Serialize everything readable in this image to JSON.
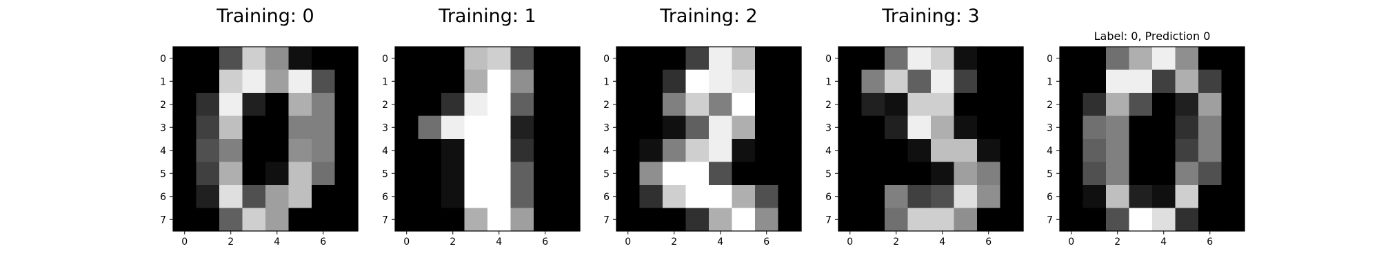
{
  "chart_data": [
    {
      "type": "heatmap",
      "title": "Training: 0",
      "colormap": "gray",
      "vmin": 0,
      "vmax": 16,
      "xticks": [
        0,
        2,
        4,
        6
      ],
      "yticks": [
        0,
        1,
        2,
        3,
        4,
        5,
        6,
        7
      ],
      "values": [
        [
          0,
          0,
          5,
          13,
          9,
          1,
          0,
          0
        ],
        [
          0,
          0,
          13,
          15,
          10,
          15,
          5,
          0
        ],
        [
          0,
          3,
          15,
          2,
          0,
          11,
          8,
          0
        ],
        [
          0,
          4,
          12,
          0,
          0,
          8,
          8,
          0
        ],
        [
          0,
          5,
          8,
          0,
          0,
          9,
          8,
          0
        ],
        [
          0,
          4,
          11,
          0,
          1,
          12,
          7,
          0
        ],
        [
          0,
          2,
          14,
          5,
          10,
          12,
          0,
          0
        ],
        [
          0,
          0,
          6,
          13,
          10,
          0,
          0,
          0
        ]
      ]
    },
    {
      "type": "heatmap",
      "title": "Training: 1",
      "colormap": "gray",
      "vmin": 0,
      "vmax": 16,
      "xticks": [
        0,
        2,
        4,
        6
      ],
      "yticks": [
        0,
        1,
        2,
        3,
        4,
        5,
        6,
        7
      ],
      "values": [
        [
          0,
          0,
          0,
          12,
          13,
          5,
          0,
          0
        ],
        [
          0,
          0,
          0,
          11,
          16,
          9,
          0,
          0
        ],
        [
          0,
          0,
          3,
          15,
          16,
          6,
          0,
          0
        ],
        [
          0,
          7,
          15,
          16,
          16,
          2,
          0,
          0
        ],
        [
          0,
          0,
          1,
          16,
          16,
          3,
          0,
          0
        ],
        [
          0,
          0,
          1,
          16,
          16,
          6,
          0,
          0
        ],
        [
          0,
          0,
          1,
          16,
          16,
          6,
          0,
          0
        ],
        [
          0,
          0,
          0,
          11,
          16,
          10,
          0,
          0
        ]
      ]
    },
    {
      "type": "heatmap",
      "title": "Training: 2",
      "colormap": "gray",
      "vmin": 0,
      "vmax": 16,
      "xticks": [
        0,
        2,
        4,
        6
      ],
      "yticks": [
        0,
        1,
        2,
        3,
        4,
        5,
        6,
        7
      ],
      "values": [
        [
          0,
          0,
          0,
          4,
          15,
          12,
          0,
          0
        ],
        [
          0,
          0,
          3,
          16,
          15,
          14,
          0,
          0
        ],
        [
          0,
          0,
          8,
          13,
          8,
          16,
          0,
          0
        ],
        [
          0,
          0,
          1,
          6,
          15,
          11,
          0,
          0
        ],
        [
          0,
          1,
          8,
          13,
          15,
          1,
          0,
          0
        ],
        [
          0,
          9,
          16,
          16,
          5,
          0,
          0,
          0
        ],
        [
          0,
          3,
          13,
          16,
          16,
          11,
          5,
          0
        ],
        [
          0,
          0,
          0,
          3,
          11,
          16,
          9,
          0
        ]
      ]
    },
    {
      "type": "heatmap",
      "title": "Training: 3",
      "colormap": "gray",
      "vmin": 0,
      "vmax": 16,
      "xticks": [
        0,
        2,
        4,
        6
      ],
      "yticks": [
        0,
        1,
        2,
        3,
        4,
        5,
        6,
        7
      ],
      "values": [
        [
          0,
          0,
          7,
          15,
          13,
          1,
          0,
          0
        ],
        [
          0,
          8,
          13,
          6,
          15,
          4,
          0,
          0
        ],
        [
          0,
          2,
          1,
          13,
          13,
          0,
          0,
          0
        ],
        [
          0,
          0,
          2,
          15,
          11,
          1,
          0,
          0
        ],
        [
          0,
          0,
          0,
          1,
          12,
          12,
          1,
          0
        ],
        [
          0,
          0,
          0,
          0,
          1,
          10,
          8,
          0
        ],
        [
          0,
          0,
          8,
          4,
          5,
          14,
          9,
          0
        ],
        [
          0,
          0,
          7,
          13,
          13,
          9,
          0,
          0
        ]
      ]
    },
    {
      "type": "heatmap",
      "title": "Label: 0, Prediction 0",
      "colormap": "gray",
      "vmin": 0,
      "vmax": 16,
      "xticks": [
        0,
        2,
        4,
        6
      ],
      "yticks": [
        0,
        1,
        2,
        3,
        4,
        5,
        6,
        7
      ],
      "values": [
        [
          0,
          0,
          7,
          11,
          15,
          9,
          0,
          0
        ],
        [
          0,
          0,
          15,
          15,
          4,
          11,
          4,
          0
        ],
        [
          0,
          3,
          11,
          5,
          0,
          2,
          10,
          0
        ],
        [
          0,
          7,
          8,
          0,
          0,
          3,
          8,
          0
        ],
        [
          0,
          6,
          8,
          0,
          0,
          4,
          8,
          0
        ],
        [
          0,
          5,
          8,
          0,
          0,
          8,
          5,
          0
        ],
        [
          0,
          1,
          12,
          2,
          1,
          13,
          0,
          0
        ],
        [
          0,
          0,
          5,
          16,
          14,
          3,
          0,
          0
        ]
      ]
    }
  ]
}
